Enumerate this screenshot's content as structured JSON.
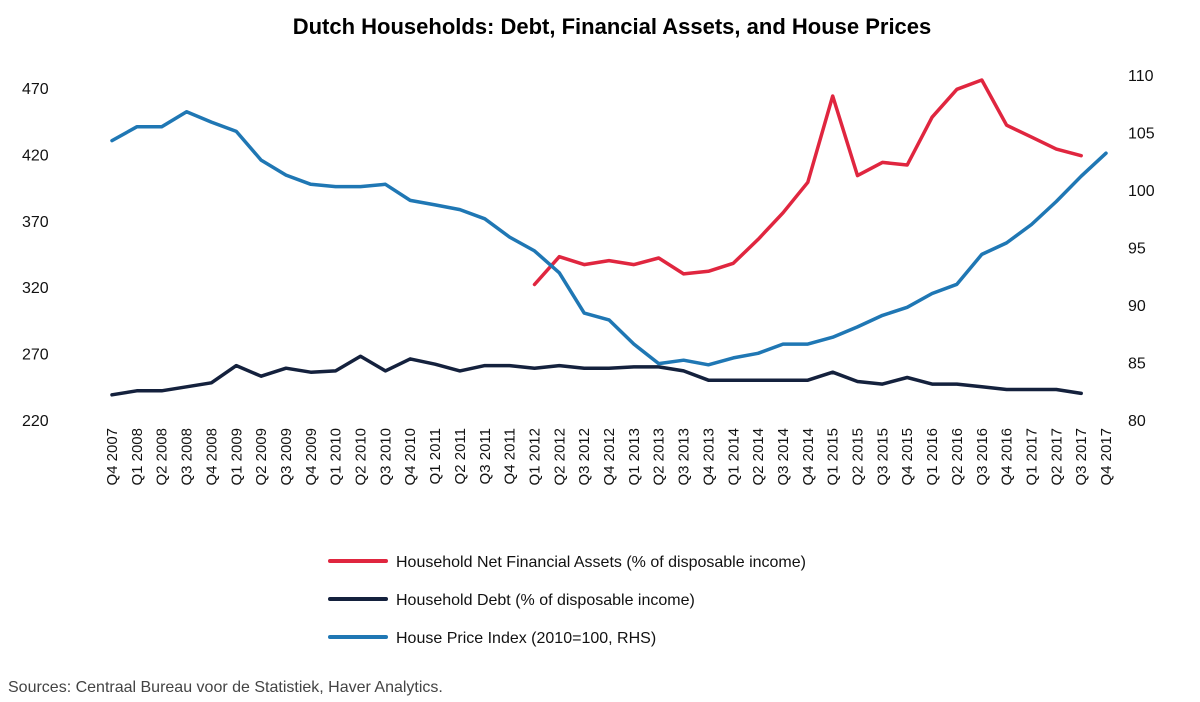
{
  "chart_data": {
    "type": "line",
    "title": "Dutch Households: Debt, Financial Assets, and House Prices",
    "xlabel": "",
    "ylabel": "",
    "y_left_lim": [
      220,
      470
    ],
    "y_right_lim": [
      80,
      110
    ],
    "y_left_ticks": [
      "470",
      "420",
      "370",
      "320",
      "270",
      "220"
    ],
    "y_right_ticks": [
      "110",
      "105",
      "100",
      "95",
      "90",
      "85",
      "80"
    ],
    "categories": [
      "Q4 2007",
      "Q1 2008",
      "Q2 2008",
      "Q3 2008",
      "Q4 2008",
      "Q1 2009",
      "Q2 2009",
      "Q3 2009",
      "Q4 2009",
      "Q1 2010",
      "Q2 2010",
      "Q3 2010",
      "Q4 2010",
      "Q1 2011",
      "Q2 2011",
      "Q3 2011",
      "Q4 2011",
      "Q1 2012",
      "Q2 2012",
      "Q3 2012",
      "Q4 2012",
      "Q1 2013",
      "Q2 2013",
      "Q3 2013",
      "Q4 2013",
      "Q1 2014",
      "Q2 2014",
      "Q3 2014",
      "Q4 2014",
      "Q1 2015",
      "Q2 2015",
      "Q3 2015",
      "Q4 2015",
      "Q1 2016",
      "Q2 2016",
      "Q3 2016",
      "Q4 2016",
      "Q1 2017",
      "Q2 2017",
      "Q3 2017",
      "Q4 2017"
    ],
    "series": [
      {
        "name": "Household Net Financial Assets (% of disposable income)",
        "color": "#e0263f",
        "axis": "left",
        "values": [
          null,
          null,
          null,
          null,
          null,
          null,
          null,
          null,
          null,
          null,
          null,
          null,
          null,
          null,
          null,
          null,
          null,
          322,
          343,
          337,
          340,
          337,
          342,
          330,
          332,
          338,
          356,
          376,
          399,
          464,
          404,
          414,
          412,
          448,
          469,
          476,
          442,
          433,
          424,
          419,
          null
        ]
      },
      {
        "name": "Household Debt (% of disposable income)",
        "color": "#14213d",
        "axis": "left",
        "values": [
          239,
          242,
          242,
          245,
          248,
          261,
          253,
          259,
          256,
          257,
          268,
          257,
          266,
          262,
          257,
          261,
          261,
          259,
          261,
          259,
          259,
          260,
          260,
          257,
          250,
          250,
          250,
          250,
          250,
          256,
          249,
          247,
          252,
          247,
          247,
          245,
          243,
          243,
          243,
          240,
          null
        ]
      },
      {
        "name": "House Price Index (2010=100, RHS)",
        "color": "#1f77b4",
        "axis": "right",
        "values": [
          104.3,
          105.5,
          105.5,
          106.8,
          105.9,
          105.1,
          102.6,
          101.3,
          100.5,
          100.3,
          100.3,
          100.5,
          99.1,
          98.7,
          98.3,
          97.5,
          95.9,
          94.7,
          92.8,
          89.3,
          88.7,
          86.6,
          84.9,
          85.2,
          84.8,
          85.4,
          85.8,
          86.6,
          86.6,
          87.2,
          88.1,
          89.1,
          89.8,
          91.0,
          91.8,
          94.4,
          95.4,
          97.0,
          99.0,
          101.2,
          103.2
        ]
      }
    ],
    "legend_position": "bottom",
    "source": "Sources: Centraal Bureau voor de Statistiek, Haver Analytics."
  }
}
